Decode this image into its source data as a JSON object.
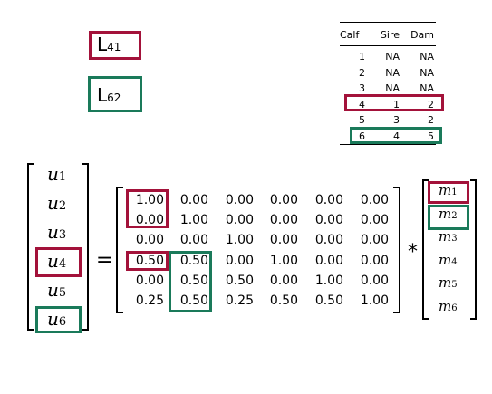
{
  "legend": {
    "l41": {
      "main": "L",
      "sub": "41"
    },
    "l62": {
      "main": "L",
      "sub": "62"
    }
  },
  "pedigree": {
    "headers": [
      "Calf",
      "Sire",
      "Dam"
    ],
    "rows": [
      [
        "1",
        "NA",
        "NA"
      ],
      [
        "2",
        "NA",
        "NA"
      ],
      [
        "3",
        "NA",
        "NA"
      ],
      [
        "4",
        "1",
        "2"
      ],
      [
        "5",
        "3",
        "2"
      ],
      [
        "6",
        "4",
        "5"
      ]
    ]
  },
  "lhs_vector": {
    "symbol": "u",
    "subscripts": [
      "1",
      "2",
      "3",
      "4",
      "5",
      "6"
    ]
  },
  "equals": "=",
  "times": "*",
  "matrix": [
    [
      "1.00",
      "0.00",
      "0.00",
      "0.00",
      "0.00",
      "0.00"
    ],
    [
      "0.00",
      "1.00",
      "0.00",
      "0.00",
      "0.00",
      "0.00"
    ],
    [
      "0.00",
      "0.00",
      "1.00",
      "0.00",
      "0.00",
      "0.00"
    ],
    [
      "0.50",
      "0.50",
      "0.00",
      "1.00",
      "0.00",
      "0.00"
    ],
    [
      "0.00",
      "0.50",
      "0.50",
      "0.00",
      "1.00",
      "0.00"
    ],
    [
      "0.25",
      "0.50",
      "0.25",
      "0.50",
      "0.50",
      "1.00"
    ]
  ],
  "rhs_vector": {
    "symbol": "m",
    "subscripts": [
      "1",
      "2",
      "3",
      "4",
      "5",
      "6"
    ]
  },
  "colors": {
    "red": "#a3123a",
    "green": "#1a7a5a"
  }
}
